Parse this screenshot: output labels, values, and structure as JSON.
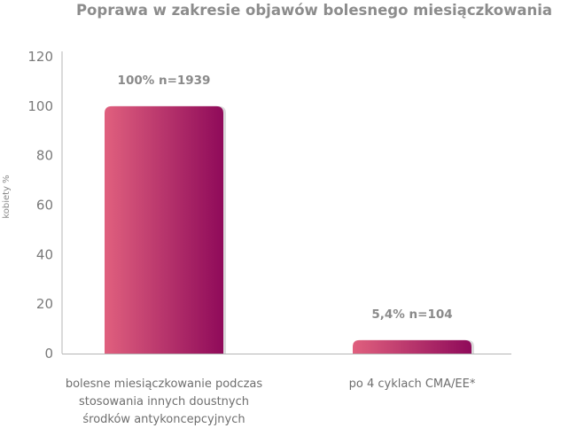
{
  "chart_data": {
    "type": "bar",
    "title": "Poprawa w zakresie objawów bolesnego miesiączkowania",
    "ylabel": "kobiety %",
    "xlabel": "",
    "ylim": [
      0,
      120
    ],
    "yticks": [
      "0",
      "20",
      "40",
      "60",
      "80",
      "100",
      "120"
    ],
    "grid": false,
    "categories": [
      [
        "bolesne miesiączkowanie podczas",
        "stosowania innych doustnych",
        "środków antykoncepcyjnych"
      ],
      [
        "po 4 cyklach CMA/EE*"
      ]
    ],
    "values": [
      100,
      5.4
    ],
    "data_labels": [
      "100% n=1939",
      "5,4% n=104"
    ],
    "colors": {
      "bar_start": "#e0607e",
      "bar_end": "#8f0a5a",
      "shadow": "#bdbdbd",
      "axis": "#b5b5b5"
    }
  }
}
